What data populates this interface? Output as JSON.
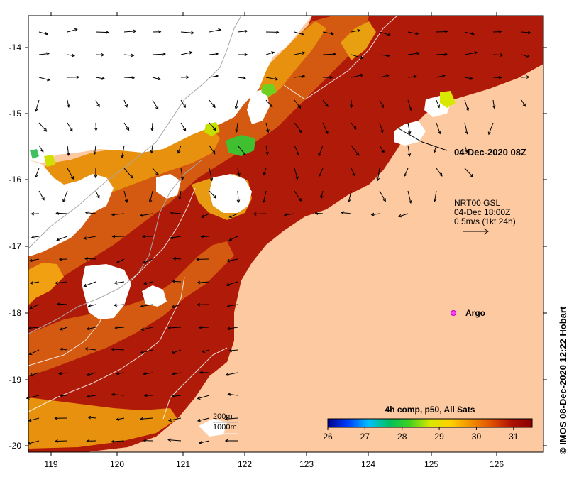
{
  "map": {
    "x_ticks": [
      "119",
      "120",
      "121",
      "122",
      "123",
      "124",
      "125",
      "126"
    ],
    "y_ticks": [
      "-14",
      "-15",
      "-16",
      "-17",
      "-18",
      "-19",
      "-20"
    ],
    "land_color": "#fdc9a0",
    "sea_warm_color": "#b01a08",
    "sea_mid_color": "#d6570c",
    "sea_cool_color": "#e8910f",
    "cloud_color": "#ffffff",
    "contour_color": "#a8a8a8"
  },
  "annotations": {
    "timestamp_label": "04-Dec-2020 08Z",
    "current_source": "NRT00 GSL",
    "current_time": "04-Dec 18:00Z",
    "current_scale": "0.5m/s (1kt 24h)",
    "argo_label": "Argo",
    "depth_200": "200m",
    "depth_1000": "1000m",
    "credit": "© IMOS 08-Dec-2020 12:22 Hobart"
  },
  "colorbar": {
    "title": "4h comp, p50, All Sats",
    "ticks": [
      "26",
      "27",
      "28",
      "29",
      "30",
      "31"
    ],
    "stops": [
      "#00008b",
      "#0040ff",
      "#00c0ff",
      "#00c060",
      "#40d020",
      "#d8e800",
      "#ffd000",
      "#f09000",
      "#e05000",
      "#b01000",
      "#8a0000"
    ]
  }
}
